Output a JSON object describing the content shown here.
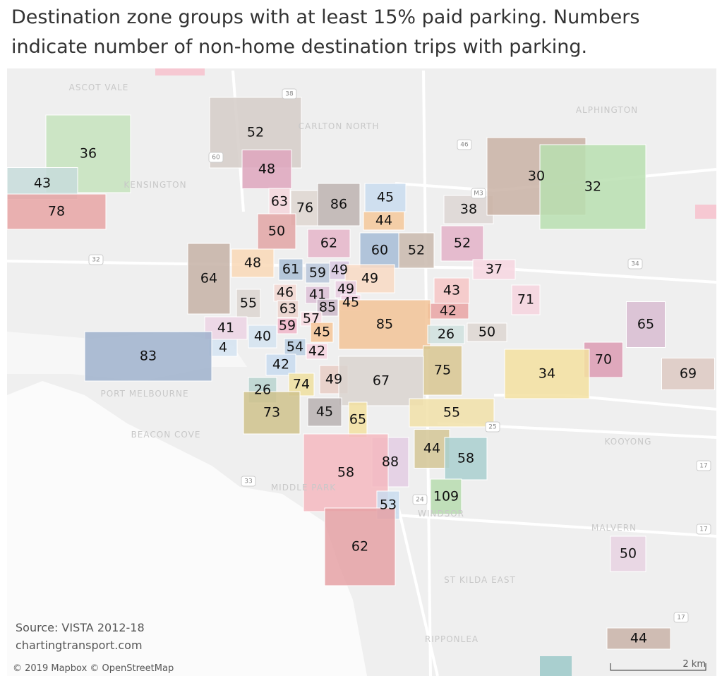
{
  "title": "Destination zone groups with at least 15% paid parking. Numbers indicate number of non-home destination trips with parking.",
  "zones": [
    {
      "label": 52,
      "color": "#d5ccc8"
    },
    {
      "label": 36,
      "color": "#c5e3bd"
    },
    {
      "label": 43,
      "color": "#c7dcda"
    },
    {
      "label": 78,
      "color": "#e8a5a5"
    },
    {
      "label": 48,
      "color": "#dea6bd"
    },
    {
      "label": 63,
      "color": "#f5d6dc"
    },
    {
      "label": 76,
      "color": "#ded6d0"
    },
    {
      "label": 86,
      "color": "#bdb3b0"
    },
    {
      "label": 45,
      "color": "#c9dcee"
    },
    {
      "label": 44,
      "color": "#f5c89a"
    },
    {
      "label": 38,
      "color": "#ddd6d3"
    },
    {
      "label": 30,
      "color": "#c9b1a5"
    },
    {
      "label": 32,
      "color": "#b8dfb0"
    },
    {
      "label": 50,
      "color": "#e2a4a4"
    },
    {
      "label": 62,
      "color": "#e5b5c9"
    },
    {
      "label": 60,
      "color": "#a6bcd6"
    },
    {
      "label": 52,
      "color": "#c9b8ad"
    },
    {
      "label": 52,
      "color": "#e3b1c8"
    },
    {
      "label": 37,
      "color": "#f7d6e0"
    },
    {
      "label": 48,
      "color": "#f9d8b6"
    },
    {
      "label": 64,
      "color": "#c5b1a6"
    },
    {
      "label": 61,
      "color": "#a9bed5"
    },
    {
      "label": 59,
      "color": "#b9c6d9"
    },
    {
      "label": 49,
      "color": "#d8c8e0"
    },
    {
      "label": 49,
      "color": "#f8d9c3"
    },
    {
      "label": 43,
      "color": "#f6c6c6"
    },
    {
      "label": 71,
      "color": "#f6d3de"
    },
    {
      "label": 46,
      "color": "#f2d6d0"
    },
    {
      "label": 41,
      "color": "#dcc0d6"
    },
    {
      "label": 49,
      "color": "#e8cde0"
    },
    {
      "label": 55,
      "color": "#dcd5d0"
    },
    {
      "label": 63,
      "color": "#ebd2cc"
    },
    {
      "label": 85,
      "color": "#cbb8c9"
    },
    {
      "label": 45,
      "color": "#f0cfe0"
    },
    {
      "label": 57,
      "color": "#f7d9e0"
    },
    {
      "label": 42,
      "color": "#e9a3a3"
    },
    {
      "label": 85,
      "color": "#f2c397"
    },
    {
      "label": 26,
      "color": "#cfe0de"
    },
    {
      "label": 50,
      "color": "#ddd6d1"
    },
    {
      "label": 65,
      "color": "#d8bcd1"
    },
    {
      "label": 41,
      "color": "#ecd3e4"
    },
    {
      "label": 40,
      "color": "#d4e3f0"
    },
    {
      "label": 59,
      "color": "#f0b5c8"
    },
    {
      "label": 45,
      "color": "#f6c698"
    },
    {
      "label": 4,
      "color": "#d3e3f1"
    },
    {
      "label": 54,
      "color": "#b9cde0"
    },
    {
      "label": 42,
      "color": "#f7d4e0"
    },
    {
      "label": 83,
      "color": "#9fb2cd"
    },
    {
      "label": 70,
      "color": "#dc9bb3"
    },
    {
      "label": 42,
      "color": "#c8dbee"
    },
    {
      "label": 75,
      "color": "#d8c690"
    },
    {
      "label": 34,
      "color": "#f3e0a0"
    },
    {
      "label": 69,
      "color": "#ddc9c2"
    },
    {
      "label": 49,
      "color": "#e8cdc4"
    },
    {
      "label": 67,
      "color": "#d9d3cf"
    },
    {
      "label": 74,
      "color": "#efdf9f"
    },
    {
      "label": 26,
      "color": "#b9d4cf"
    },
    {
      "label": 73,
      "color": "#cfc28c"
    },
    {
      "label": 45,
      "color": "#b8b2b2"
    },
    {
      "label": 65,
      "color": "#f2e0a0"
    },
    {
      "label": 55,
      "color": "#f1e1a8"
    },
    {
      "label": 44,
      "color": "#d3c595"
    },
    {
      "label": 58,
      "color": "#a9cfcf"
    },
    {
      "label": 88,
      "color": "#e3cde3"
    },
    {
      "label": 58,
      "color": "#f5b9bf"
    },
    {
      "label": 109,
      "color": "#b7dcaf"
    },
    {
      "label": 53,
      "color": "#c9dcef"
    },
    {
      "label": 62,
      "color": "#e5a1a4"
    },
    {
      "label": 50,
      "color": "#e8d2e2"
    },
    {
      "label": 44,
      "color": "#c9b3a8"
    }
  ],
  "places": [
    "ASCOT VALE",
    "KENSINGTON",
    "CARLTON NORTH",
    "ALPHINGTON",
    "PORT MELBOURNE",
    "BEACON COVE",
    "MIDDLE PARK",
    "WINDSOR",
    "ST KILDA EAST",
    "MALVERN",
    "KOOYONG",
    "RIPPONLEA"
  ],
  "roads": [
    "38",
    "60",
    "46",
    "M3",
    "32",
    "34",
    "25",
    "24",
    "33",
    "17",
    "17",
    "17"
  ],
  "source": "Source: VISTA 2012-18",
  "site": "chartingtransport.com",
  "attribution": "© 2019 Mapbox © OpenStreetMap",
  "scale": "2 km"
}
